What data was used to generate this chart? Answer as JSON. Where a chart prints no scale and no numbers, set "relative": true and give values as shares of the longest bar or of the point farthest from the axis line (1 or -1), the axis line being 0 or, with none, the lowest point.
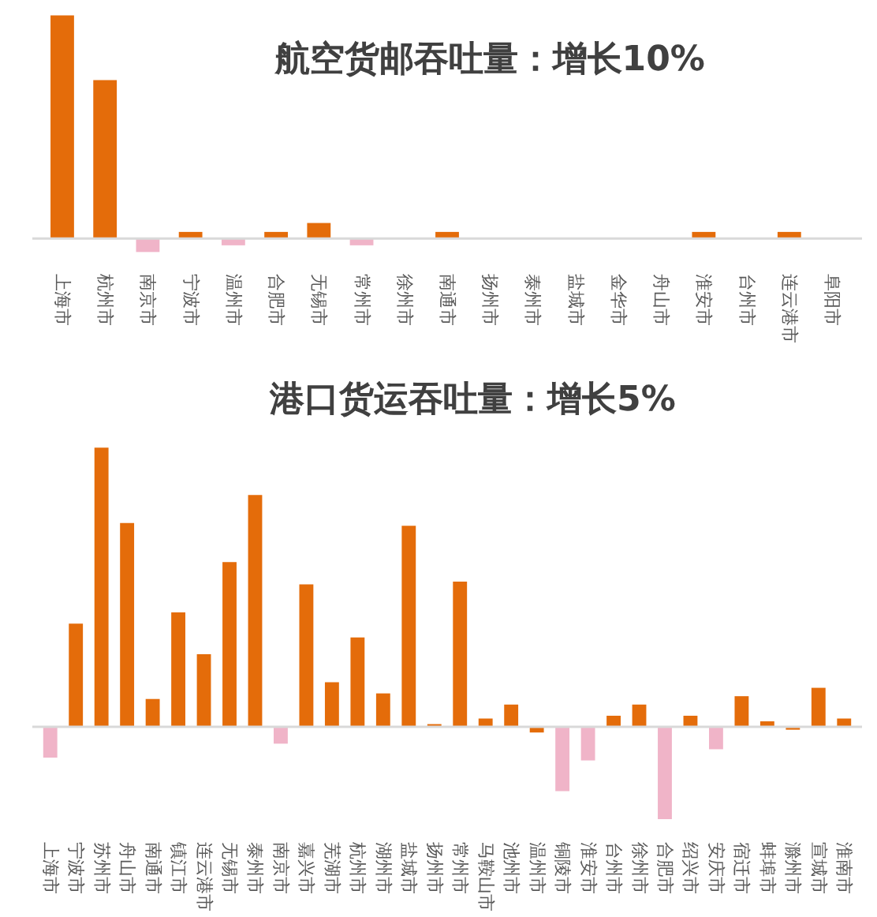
{
  "chart_data": [
    {
      "type": "bar",
      "title": "航空货邮吞吐量：增长10%",
      "relative": true,
      "categories": [
        "上海市",
        "杭州市",
        "南京市",
        "宁波市",
        "温州市",
        "合肥市",
        "无锡市",
        "常州市",
        "徐州市",
        "南通市",
        "扬州市",
        "泰州市",
        "盐城市",
        "金华市",
        "舟山市",
        "淮安市",
        "台州市",
        "连云港市",
        "阜阳市"
      ],
      "values": [
        1,
        0.71,
        -0.06,
        0.03,
        -0.03,
        0.03,
        0.07,
        -0.03,
        0,
        0.03,
        0,
        0,
        0,
        0,
        0,
        0.03,
        0,
        0.03,
        0
      ],
      "colors": [
        "#e46c0a",
        "#e46c0a",
        "#f0b4c8",
        "#e46c0a",
        "#f0b4c8",
        "#e46c0a",
        "#e46c0a",
        "#f0b4c8",
        "#e46c0a",
        "#e46c0a",
        "#e46c0a",
        "#e46c0a",
        "#e46c0a",
        "#e46c0a",
        "#e46c0a",
        "#e46c0a",
        "#e46c0a",
        "#e46c0a",
        "#e46c0a"
      ]
    },
    {
      "type": "bar",
      "title": "港口货运吞吐量：增长5%",
      "relative": true,
      "categories": [
        "上海市",
        "宁波市",
        "苏州市",
        "舟山市",
        "南通市",
        "镇江市",
        "连云港市",
        "无锡市",
        "泰州市",
        "南京市",
        "嘉兴市",
        "芜湖市",
        "杭州市",
        "湖州市",
        "盐城市",
        "扬州市",
        "常州市",
        "马鞍山市",
        "池州市",
        "温州市",
        "铜陵市",
        "淮安市",
        "台州市",
        "徐州市",
        "合肥市",
        "绍兴市",
        "安庆市",
        "宿迁市",
        "蚌埠市",
        "滁州市",
        "宣城市",
        "淮南市"
      ],
      "values": [
        -0.11,
        0.37,
        1,
        0.73,
        0.1,
        0.41,
        0.26,
        0.59,
        0.83,
        -0.06,
        0.51,
        0.16,
        0.32,
        0.12,
        0.72,
        0.01,
        0.52,
        0.03,
        0.08,
        -0.02,
        -0.23,
        -0.12,
        0.04,
        0.08,
        -0.33,
        0.04,
        -0.08,
        0.11,
        0.02,
        -0.01,
        0.14,
        0.03
      ],
      "colors": [
        "#f0b4c8",
        "#e46c0a",
        "#e46c0a",
        "#e46c0a",
        "#e46c0a",
        "#e46c0a",
        "#e46c0a",
        "#e46c0a",
        "#e46c0a",
        "#f0b4c8",
        "#e46c0a",
        "#e46c0a",
        "#e46c0a",
        "#e46c0a",
        "#e46c0a",
        "#e46c0a",
        "#e46c0a",
        "#e46c0a",
        "#e46c0a",
        "#e46c0a",
        "#f0b4c8",
        "#f0b4c8",
        "#e46c0a",
        "#e46c0a",
        "#f0b4c8",
        "#e46c0a",
        "#f0b4c8",
        "#e46c0a",
        "#e46c0a",
        "#e46c0a",
        "#e46c0a",
        "#e46c0a"
      ]
    }
  ]
}
